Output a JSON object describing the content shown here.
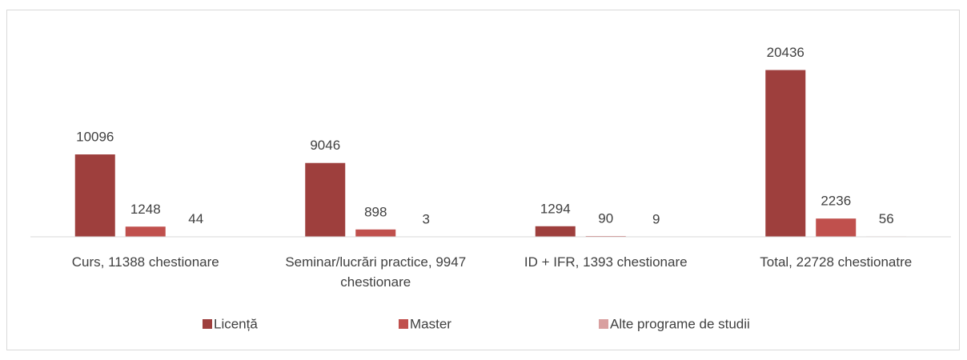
{
  "chart_data": {
    "type": "bar",
    "categories": [
      "Curs, 11388 chestionare",
      "Seminar/lucrări practice, 9947 chestionare",
      "ID + IFR, 1393 chestionare",
      "Total, 22728 chestionatre"
    ],
    "series": [
      {
        "name": "Licență",
        "color": "#9e3f3d",
        "values": [
          10096,
          9046,
          1294,
          20436
        ]
      },
      {
        "name": "Master",
        "color": "#c0504d",
        "values": [
          1248,
          898,
          90,
          2236
        ]
      },
      {
        "name": "Alte programe de studii",
        "color": "#d9a0a0",
        "values": [
          44,
          3,
          9,
          56
        ]
      }
    ],
    "ylim": [
      0,
      25000
    ],
    "legend": "bottom"
  }
}
